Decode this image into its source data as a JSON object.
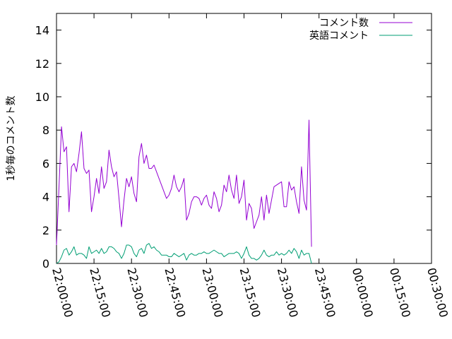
{
  "chart_data": {
    "type": "line",
    "ylabel": "1秒毎のコメント数",
    "xlabel": "",
    "title": "",
    "ylim": [
      0,
      15
    ],
    "yticks": [
      0,
      2,
      4,
      6,
      8,
      10,
      12,
      14
    ],
    "xlim": [
      "22:00:00",
      "00:30:00"
    ],
    "xticks": [
      "22:00:00",
      "22:15:00",
      "22:30:00",
      "22:45:00",
      "23:00:00",
      "23:15:00",
      "23:30:00",
      "23:45:00",
      "00:00:00",
      "00:15:00",
      "00:30:00"
    ],
    "grid": false,
    "legend_position": "top-right",
    "series": [
      {
        "name": "コメント数",
        "color": "#9400d3",
        "x_start": "22:00:00",
        "x_step_seconds": 60,
        "values": [
          1.1,
          4.6,
          8.2,
          6.7,
          7.0,
          3.1,
          5.8,
          6.0,
          5.5,
          6.6,
          7.9,
          5.7,
          5.4,
          5.6,
          3.1,
          4.0,
          5.1,
          4.2,
          5.8,
          4.5,
          4.9,
          6.8,
          5.8,
          5.2,
          5.5,
          3.9,
          2.2,
          3.8,
          5.1,
          4.6,
          5.2,
          4.2,
          3.7,
          6.4,
          7.2,
          6.0,
          6.5,
          5.7,
          5.7,
          5.9,
          5.5,
          5.1,
          4.7,
          4.3,
          3.9,
          4.1,
          4.5,
          5.3,
          4.6,
          4.3,
          4.6,
          5.1,
          2.6,
          3.0,
          3.7,
          4.0,
          4.0,
          3.9,
          3.5,
          3.9,
          4.1,
          3.5,
          3.3,
          4.3,
          3.9,
          3.1,
          3.5,
          4.7,
          4.3,
          5.3,
          4.4,
          3.9,
          5.3,
          3.6,
          4.0,
          5.0,
          2.6,
          3.6,
          3.3,
          2.1,
          2.5,
          2.9,
          4.0,
          2.6,
          4.1,
          3.0,
          3.8,
          4.6,
          4.7,
          4.8,
          4.9,
          3.4,
          3.4,
          4.9,
          4.4,
          4.6,
          3.7,
          3.0,
          5.8,
          3.8,
          3.2,
          8.6,
          1.0
        ]
      },
      {
        "name": "英語コメント",
        "color": "#009e73",
        "x_start": "22:00:00",
        "x_step_seconds": 60,
        "values": [
          0.0,
          0.1,
          0.4,
          0.8,
          0.9,
          0.5,
          0.7,
          1.0,
          0.5,
          0.6,
          0.6,
          0.5,
          0.3,
          1.0,
          0.6,
          0.7,
          0.8,
          0.6,
          0.9,
          0.6,
          0.7,
          1.0,
          1.0,
          0.9,
          0.7,
          0.6,
          0.3,
          0.6,
          1.1,
          1.1,
          1.0,
          0.6,
          0.4,
          0.8,
          0.9,
          0.6,
          1.1,
          1.2,
          0.9,
          1.0,
          0.8,
          0.7,
          0.5,
          0.5,
          0.5,
          0.4,
          0.4,
          0.6,
          0.5,
          0.4,
          0.5,
          0.6,
          0.2,
          0.5,
          0.6,
          0.5,
          0.5,
          0.6,
          0.6,
          0.7,
          0.6,
          0.6,
          0.7,
          0.8,
          0.7,
          0.6,
          0.6,
          0.4,
          0.5,
          0.6,
          0.6,
          0.6,
          0.7,
          0.6,
          0.3,
          0.6,
          1.0,
          0.5,
          0.3,
          0.3,
          0.2,
          0.3,
          0.5,
          0.8,
          0.5,
          0.4,
          0.5,
          0.5,
          0.7,
          0.5,
          0.6,
          0.5,
          0.6,
          0.8,
          0.6,
          0.9,
          0.7,
          0.3,
          0.8,
          0.5,
          0.6,
          0.6,
          0.0
        ]
      }
    ]
  }
}
